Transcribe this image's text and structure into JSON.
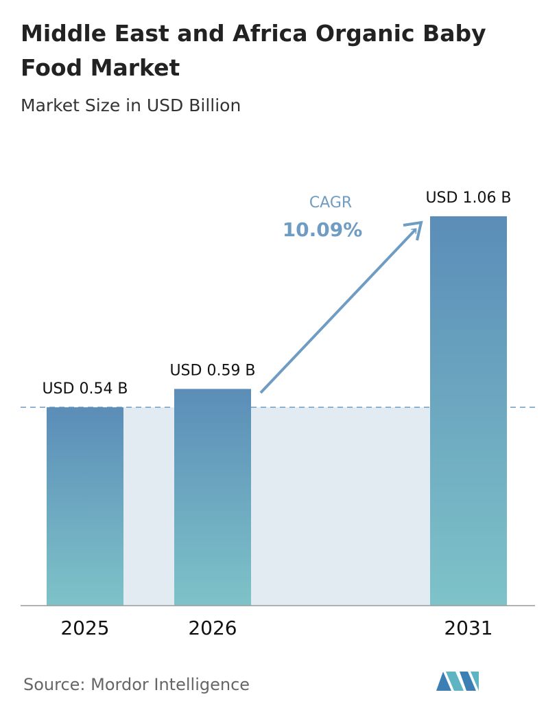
{
  "chart_data": {
    "type": "bar",
    "title": "Middle East and Africa Organic Baby Food Market",
    "subtitle": "Market Size in USD Billion",
    "categories": [
      "2025",
      "2026",
      "2031"
    ],
    "values": [
      0.54,
      0.59,
      1.06
    ],
    "value_labels": [
      "USD 0.54 B",
      "USD 0.59 B",
      "USD 1.06 B"
    ],
    "annotation_label": "CAGR",
    "annotation_value": "10.09%",
    "source": "Source: Mordor Intelligence"
  }
}
